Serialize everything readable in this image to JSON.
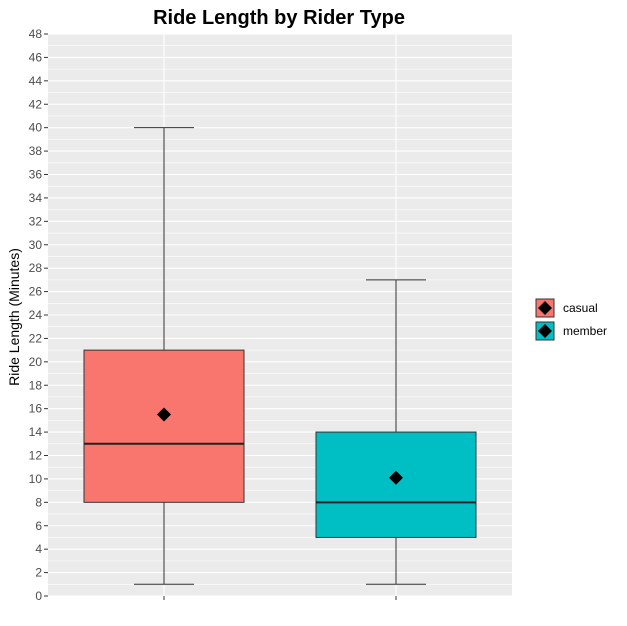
{
  "chart_data": {
    "type": "boxplot",
    "title": "Ride Length by Rider Type",
    "xlabel": "",
    "ylabel": "Ride Length (Minutes)",
    "ylim": [
      0,
      48
    ],
    "y_ticks": [
      0,
      2,
      4,
      6,
      8,
      10,
      12,
      14,
      16,
      18,
      20,
      22,
      24,
      26,
      28,
      30,
      32,
      34,
      36,
      38,
      40,
      42,
      44,
      46,
      48
    ],
    "grid": true,
    "legend_position": "right",
    "categories": [
      "casual",
      "member"
    ],
    "series": [
      {
        "name": "casual",
        "color": "#F8766D",
        "min": 1,
        "q1": 8,
        "median": 13,
        "q3": 21,
        "max": 40,
        "mean": 15.5
      },
      {
        "name": "member",
        "color": "#00BFC4",
        "min": 1,
        "q1": 5,
        "median": 8,
        "q3": 14,
        "max": 27,
        "mean": 10.1
      }
    ],
    "mean_marker": "diamond",
    "colors": {
      "panel": "#EBEBEB",
      "grid": "#FFFFFF",
      "marker": "#000000"
    }
  }
}
